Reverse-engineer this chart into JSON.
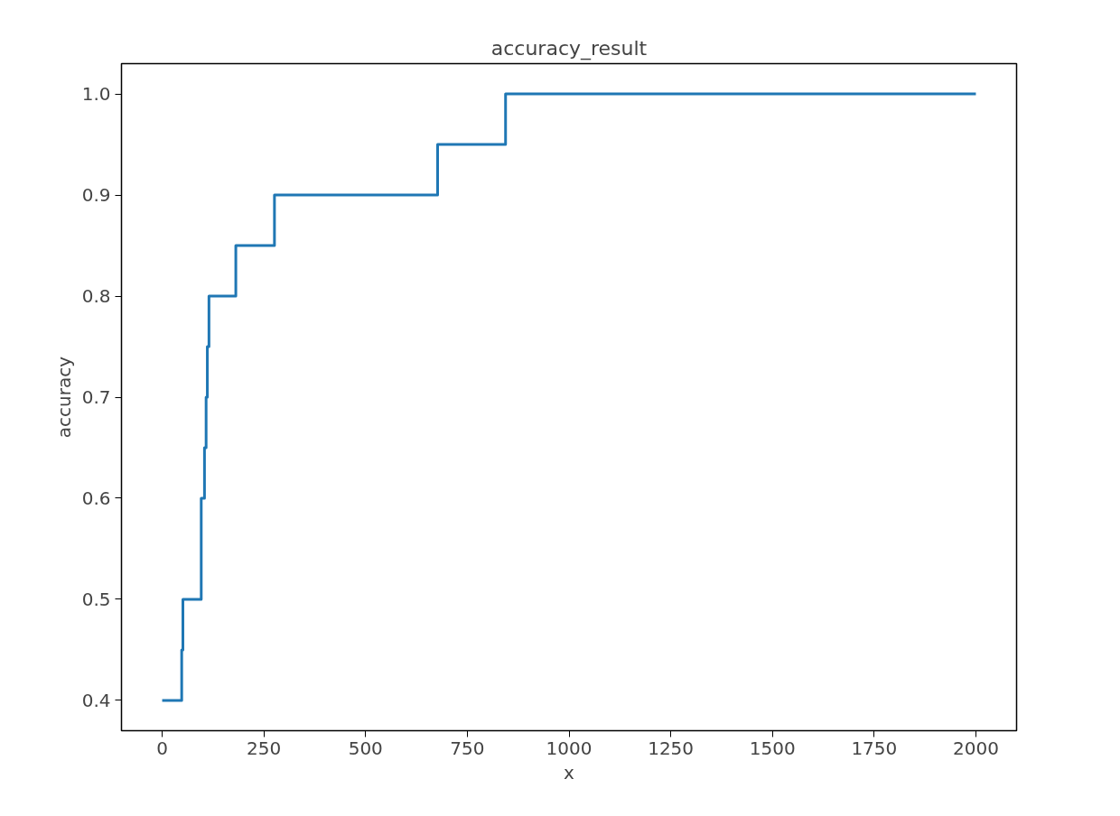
{
  "chart_data": {
    "type": "step",
    "title": "accuracy_result",
    "xlabel": "x",
    "ylabel": "accuracy",
    "x": [
      0,
      48,
      51,
      96,
      104,
      108,
      111,
      115,
      181,
      276,
      677,
      844,
      2000
    ],
    "series": [
      {
        "color": "#1f77b4",
        "values": [
          0.4,
          0.45,
          0.5,
          0.6,
          0.65,
          0.7,
          0.75,
          0.8,
          0.85,
          0.9,
          0.95,
          1.0,
          1.0
        ]
      }
    ],
    "xlim": [
      -100,
      2100
    ],
    "ylim": [
      0.37,
      1.03
    ],
    "xticks": [
      0,
      250,
      500,
      750,
      1000,
      1250,
      1500,
      1750,
      2000
    ],
    "yticks": [
      {
        "value": 0.4,
        "label": "0.4"
      },
      {
        "value": 0.5,
        "label": "0.5"
      },
      {
        "value": 0.6,
        "label": "0.6"
      },
      {
        "value": 0.7,
        "label": "0.7"
      },
      {
        "value": 0.8,
        "label": "0.8"
      },
      {
        "value": 0.9,
        "label": "0.9"
      },
      {
        "value": 1.0,
        "label": "1.0"
      }
    ],
    "grid": false
  }
}
